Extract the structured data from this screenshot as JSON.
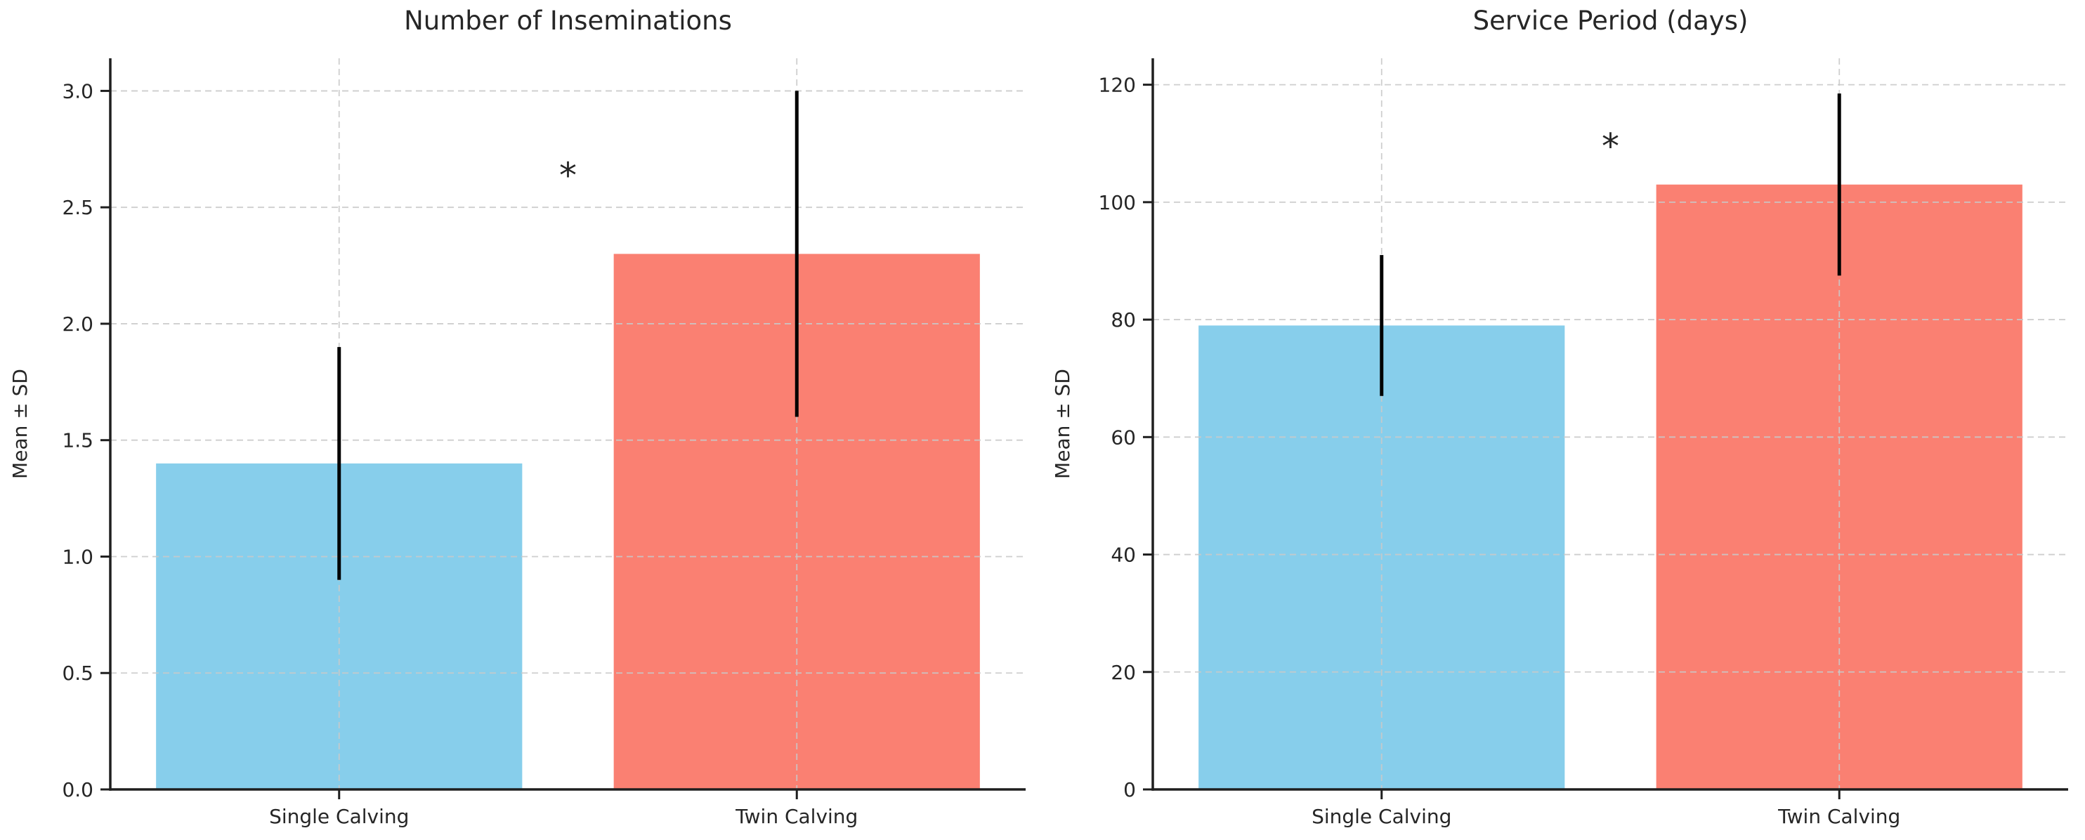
{
  "figure": {
    "description": "Two-panel bar chart comparing single vs twin calving cows",
    "background": "#ffffff"
  },
  "colors": {
    "bar_single": "#87CEEB",
    "bar_twin": "#FA8072",
    "error_bar": "#000000",
    "grid": "#c9c9c9",
    "axis": "#1f1f1f",
    "text": "#262626"
  },
  "chart_data": [
    {
      "type": "bar",
      "title": "Number of Inseminations",
      "ylabel": "Mean ± SD",
      "xlabel": "",
      "categories": [
        "Single Calving",
        "Twin Calving"
      ],
      "values": [
        1.4,
        2.3
      ],
      "errors": [
        0.5,
        0.7
      ],
      "bar_colors": [
        "#87CEEB",
        "#FA8072"
      ],
      "ylim": [
        0,
        3.14
      ],
      "yticks": [
        {
          "v": 0.0,
          "label": "0.0"
        },
        {
          "v": 0.5,
          "label": "0.5"
        },
        {
          "v": 1.0,
          "label": "1.0"
        },
        {
          "v": 1.5,
          "label": "1.5"
        },
        {
          "v": 2.0,
          "label": "2.0"
        },
        {
          "v": 2.5,
          "label": "2.5"
        },
        {
          "v": 3.0,
          "label": "3.0"
        }
      ],
      "grid": true,
      "legend": null,
      "annotation": {
        "text": "*",
        "x_frac": 0.5,
        "y": 2.7
      }
    },
    {
      "type": "bar",
      "title": "Service Period (days)",
      "ylabel": "Mean ± SD",
      "xlabel": "",
      "categories": [
        "Single Calving",
        "Twin Calving"
      ],
      "values": [
        79,
        103
      ],
      "errors": [
        12,
        15.5
      ],
      "bar_colors": [
        "#87CEEB",
        "#FA8072"
      ],
      "ylim": [
        0,
        124.5
      ],
      "yticks": [
        {
          "v": 0,
          "label": "0"
        },
        {
          "v": 20,
          "label": "20"
        },
        {
          "v": 40,
          "label": "40"
        },
        {
          "v": 60,
          "label": "60"
        },
        {
          "v": 80,
          "label": "80"
        },
        {
          "v": 100,
          "label": "100"
        },
        {
          "v": 120,
          "label": "120"
        }
      ],
      "grid": true,
      "legend": null,
      "annotation": {
        "text": "*",
        "x_frac": 0.5,
        "y": 112
      }
    }
  ]
}
